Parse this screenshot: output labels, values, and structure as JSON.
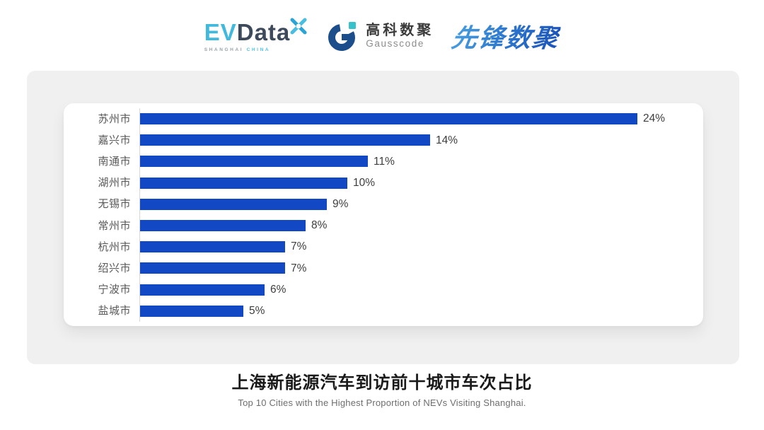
{
  "logos": {
    "evdata": {
      "text_ev": "EV",
      "text_data": "Data",
      "subtext_left": "SHANGHAI",
      "subtext_right": "CHINA",
      "color_ev": "#41b9dd",
      "color_data": "#3d4a5c"
    },
    "gausscode": {
      "cn": "高科数聚",
      "en": "Gausscode",
      "mark_color": "#1d4e8c",
      "accent_color": "#35c2cb"
    },
    "pioneer": {
      "text": "先锋数聚",
      "color": "#2e7bd0"
    }
  },
  "chart_data": {
    "type": "bar",
    "orientation": "horizontal",
    "categories": [
      "苏州市",
      "嘉兴市",
      "南通市",
      "湖州市",
      "无锡市",
      "常州市",
      "杭州市",
      "绍兴市",
      "宁波市",
      "盐城市"
    ],
    "values": [
      24,
      14,
      11,
      10,
      9,
      8,
      7,
      7,
      6,
      5
    ],
    "unit": "%",
    "xlim": [
      0,
      24
    ],
    "grid": false,
    "legend": false,
    "bar_color": "#1348c5",
    "axis_line_color": "#d9d9d9",
    "label_color": "#595959",
    "value_color": "#3d3d3d",
    "title": "上海新能源汽车到访前十城市车次占比",
    "subtitle": "Top 10 Cities with the Highest Proportion of  NEVs Visiting Shanghai."
  }
}
